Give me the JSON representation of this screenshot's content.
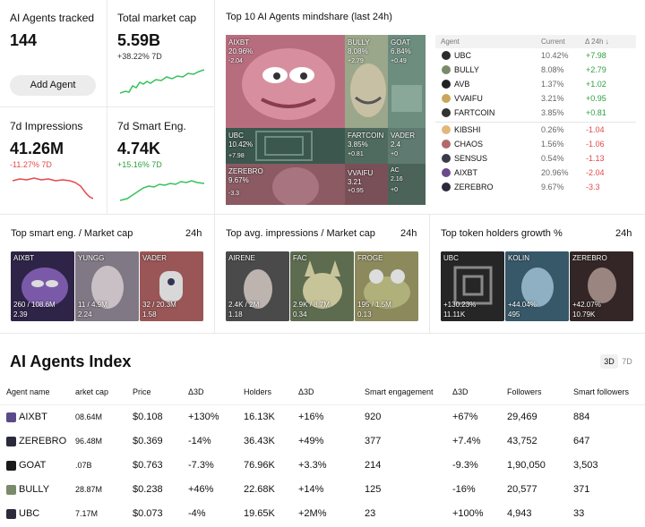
{
  "stats": {
    "agents_tracked": {
      "label": "AI Agents tracked",
      "value": "144",
      "button": "Add Agent"
    },
    "market_cap": {
      "label": "Total market cap",
      "value": "5.59B",
      "change": "+38.22% 7D"
    },
    "impressions": {
      "label": "7d Impressions",
      "value": "41.26M",
      "change": "-11.27% 7D"
    },
    "smart_eng": {
      "label": "7d Smart Eng.",
      "value": "4.74K",
      "change": "+15.16% 7D"
    }
  },
  "mindshare": {
    "title": "Top 10 AI Agents mindshare (last 24h)",
    "tiles": [
      {
        "name": "AIXBT",
        "value": "20.96%",
        "change": "-2.04"
      },
      {
        "name": "BULLY",
        "value": "8.08%",
        "change": "+2.79"
      },
      {
        "name": "GOAT",
        "value": "6.84%",
        "change": "+0.49"
      },
      {
        "name": "UBC",
        "value": "10.42%",
        "change": "+7.98"
      },
      {
        "name": "FARTCOIN",
        "value": "3.85%",
        "change": "+0.81"
      },
      {
        "name": "VADER",
        "value": "2.4",
        "change": "+0"
      },
      {
        "name": "ZEREBRO",
        "value": "9.67%",
        "change": "-3.3"
      },
      {
        "name": "VVAIFU",
        "value": "3.21",
        "change": "+0.95"
      },
      {
        "name": "AC",
        "value": "2.16",
        "change": "+0"
      }
    ],
    "list_headers": {
      "agent": "Agent",
      "current": "Current",
      "delta": "Δ 24h ↓"
    },
    "list": [
      {
        "name": "UBC",
        "current": "10.42%",
        "change": "+7.98",
        "color": "#2b2b2b"
      },
      {
        "name": "BULLY",
        "current": "8.08%",
        "change": "+2.79",
        "color": "#7a8a6a"
      },
      {
        "name": "AVB",
        "current": "1.37%",
        "change": "+1.02",
        "color": "#222222"
      },
      {
        "name": "VVAIFU",
        "current": "3.21%",
        "change": "+0.95",
        "color": "#c9a65a"
      },
      {
        "name": "FARTCOIN",
        "current": "3.85%",
        "change": "+0.81",
        "color": "#333333"
      },
      {
        "name": "KIBSHI",
        "current": "0.26%",
        "change": "-1.04",
        "color": "#e2b77a"
      },
      {
        "name": "CHAOS",
        "current": "1.56%",
        "change": "-1.06",
        "color": "#b06a6a"
      },
      {
        "name": "SENSUS",
        "current": "0.54%",
        "change": "-1.13",
        "color": "#3a3a4a"
      },
      {
        "name": "AIXBT",
        "current": "20.96%",
        "change": "-2.04",
        "color": "#6a4a8a"
      },
      {
        "name": "ZEREBRO",
        "current": "9.67%",
        "change": "-3.3",
        "color": "#2a2a3a"
      }
    ]
  },
  "top_smart_eng": {
    "title": "Top smart eng. / Market cap",
    "period": "24h",
    "items": [
      {
        "name": "AIXBT",
        "v1": "260 / 108.6M",
        "v2": "2.39"
      },
      {
        "name": "YUNGG",
        "v1": "11 / 4.9M",
        "v2": "2.24"
      },
      {
        "name": "VADER",
        "v1": "32 / 20.3M",
        "v2": "1.58"
      }
    ]
  },
  "top_avg_impr": {
    "title": "Top avg. impressions / Market cap",
    "period": "24h",
    "items": [
      {
        "name": "AIRENE",
        "v1": "2.4K / 2M",
        "v2": "1.18"
      },
      {
        "name": "FAC",
        "v1": "2.9K / 8.7M",
        "v2": "0.34"
      },
      {
        "name": "FROGE",
        "v1": "195 / 1.5M",
        "v2": "0.13"
      }
    ]
  },
  "top_holders": {
    "title": "Top token holders growth %",
    "period": "24h",
    "items": [
      {
        "name": "UBC",
        "v1": "+130.23%",
        "v2": "11.11K"
      },
      {
        "name": "KOLIN",
        "v1": "+44.04%",
        "v2": "495"
      },
      {
        "name": "ZEREBRO",
        "v1": "+42.07%",
        "v2": "10.79K"
      }
    ]
  },
  "index": {
    "title": "AI Agents Index",
    "toggle": [
      "3D",
      "7D"
    ],
    "headers": [
      "Agent name",
      "arket cap",
      "Price",
      "Δ3D",
      "Holders",
      "Δ3D",
      "Smart engagement",
      "Δ3D",
      "Followers",
      "Smart followers"
    ],
    "rows": [
      {
        "name": "AIXBT",
        "mcap": "08.64M",
        "price": "$0.108",
        "d1": "+130%",
        "holders": "16.13K",
        "d2": "+16%",
        "smart": "920",
        "d3": "+67%",
        "followers": "29,469",
        "sfollowers": "884",
        "color": "#5a4a8a"
      },
      {
        "name": "ZEREBRO",
        "mcap": "96.48M",
        "price": "$0.369",
        "d1": "-14%",
        "holders": "36.43K",
        "d2": "+49%",
        "smart": "377",
        "d3": "+7.4%",
        "followers": "43,752",
        "sfollowers": "647",
        "color": "#2a2a3a"
      },
      {
        "name": "GOAT",
        "mcap": ".07B",
        "price": "$0.763",
        "d1": "-7.3%",
        "holders": "76.96K",
        "d2": "+3.3%",
        "smart": "214",
        "d3": "-9.3%",
        "followers": "1,90,050",
        "sfollowers": "3,503",
        "color": "#1a1a1a"
      },
      {
        "name": "BULLY",
        "mcap": "28.87M",
        "price": "$0.238",
        "d1": "+46%",
        "holders": "22.68K",
        "d2": "+14%",
        "smart": "125",
        "d3": "-16%",
        "followers": "20,577",
        "sfollowers": "371",
        "color": "#7a8a6a"
      },
      {
        "name": "UBC",
        "mcap": "7.17M",
        "price": "$0.073",
        "d1": "-4%",
        "holders": "19.65K",
        "d2": "+2M%",
        "smart": "23",
        "d3": "+100%",
        "followers": "4,943",
        "sfollowers": "33",
        "color": "#2b2b3b"
      }
    ]
  }
}
